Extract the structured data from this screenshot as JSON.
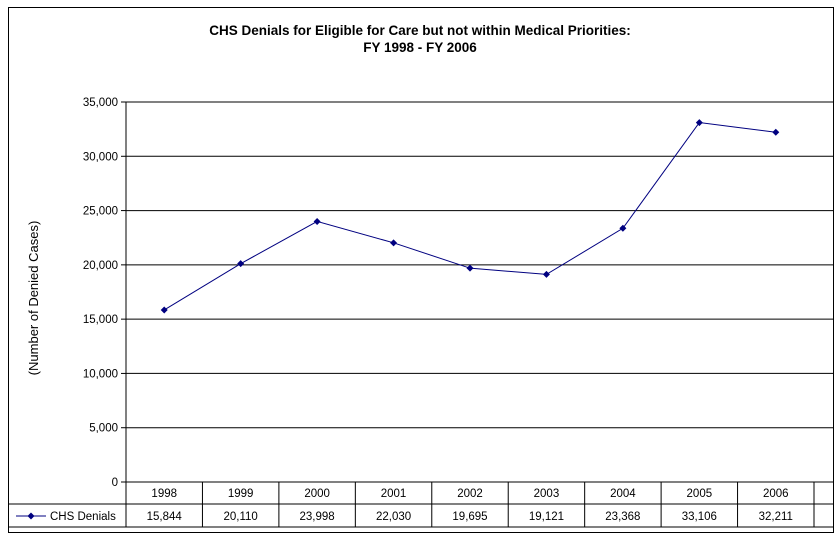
{
  "chart_data": {
    "type": "line",
    "title_line1": "CHS Denials for Eligible for Care but not within Medical Priorities:",
    "title_line2": "FY 1998 - FY 2006",
    "xlabel": "",
    "ylabel": "(Number of Denied Cases)",
    "ylim": [
      0,
      35000
    ],
    "yticks": [
      0,
      5000,
      10000,
      15000,
      20000,
      25000,
      30000,
      35000
    ],
    "ytick_labels": [
      "0",
      "5,000",
      "10,000",
      "15,000",
      "20,000",
      "25,000",
      "30,000",
      "35,000"
    ],
    "grid": true,
    "legend": "data-table",
    "categories": [
      "1998",
      "1999",
      "2000",
      "2001",
      "2002",
      "2003",
      "2004",
      "2005",
      "2006"
    ],
    "series": [
      {
        "name": "CHS Denials",
        "color": "#000080",
        "marker": "diamond",
        "values": [
          15844,
          20110,
          23998,
          22030,
          19695,
          19121,
          23368,
          33106,
          32211
        ],
        "value_labels": [
          "15,844",
          "20,110",
          "23,998",
          "22,030",
          "19,695",
          "19,121",
          "23,368",
          "33,106",
          "32,211"
        ]
      }
    ]
  }
}
